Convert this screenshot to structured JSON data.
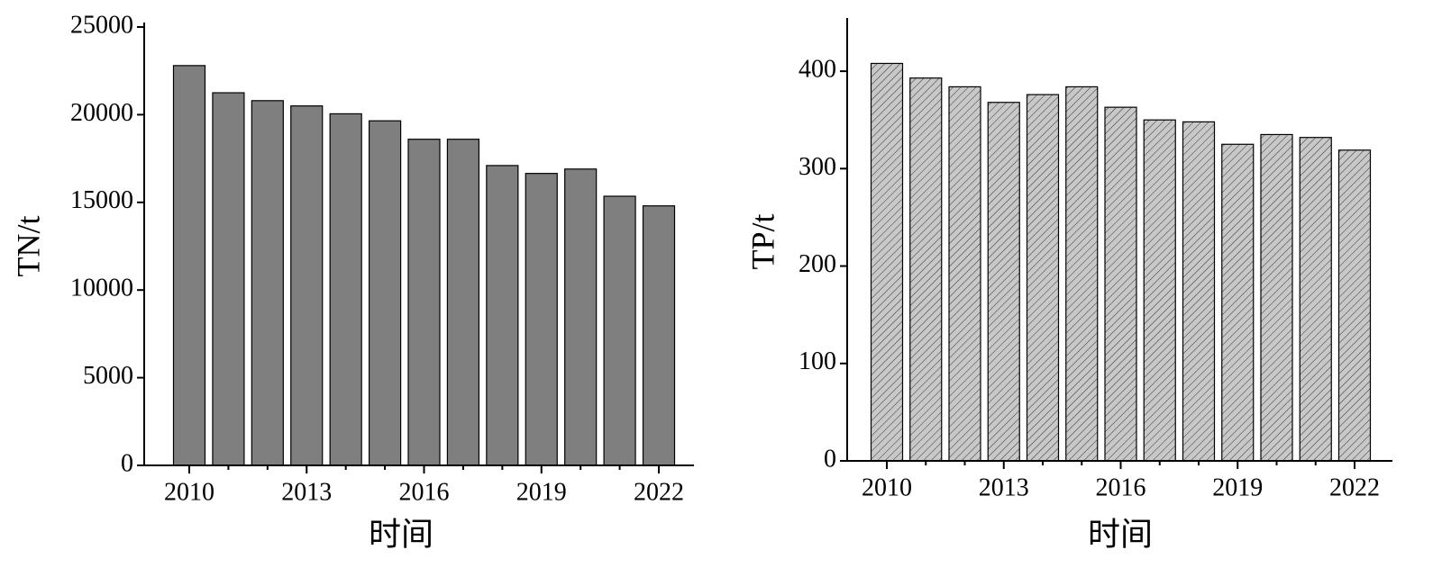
{
  "chart_data": [
    {
      "type": "bar",
      "ylabel": "TN/t",
      "xlabel": "时间",
      "categories": [
        "2010",
        null,
        null,
        "2013",
        null,
        null,
        "2016",
        null,
        null,
        "2019",
        null,
        null,
        "2022"
      ],
      "values": [
        22800,
        21250,
        20800,
        20500,
        20050,
        19650,
        18600,
        18600,
        17100,
        16650,
        16900,
        15350,
        14800
      ],
      "color": "#7f7f7f",
      "ylim": [
        0,
        25000
      ],
      "yticks": [
        0,
        5000,
        10000,
        15000,
        20000,
        25000
      ]
    },
    {
      "type": "bar",
      "ylabel": "TP/t",
      "xlabel": "时间",
      "categories": [
        "2010",
        null,
        null,
        "2013",
        null,
        null,
        "2016",
        null,
        null,
        "2019",
        null,
        null,
        "2022"
      ],
      "values": [
        408,
        393,
        384,
        368,
        376,
        384,
        363,
        350,
        348,
        325,
        335,
        332,
        319
      ],
      "color": "#c8c8c8",
      "pattern": "hatch",
      "ylim": [
        0,
        450
      ],
      "yticks": [
        0,
        100,
        200,
        300,
        400
      ]
    }
  ]
}
